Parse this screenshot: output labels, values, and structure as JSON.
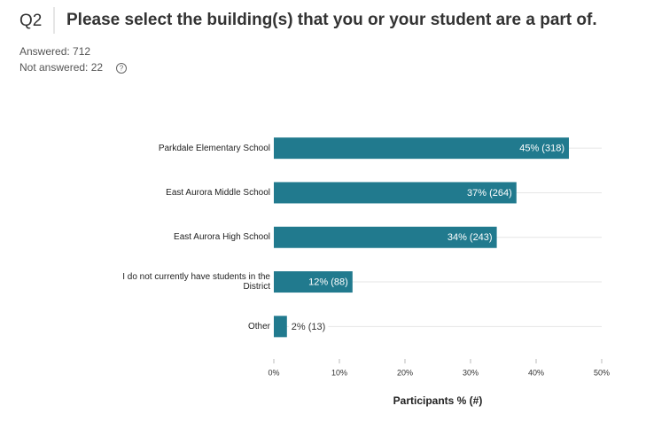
{
  "chart_data": {
    "type": "bar",
    "orientation": "horizontal",
    "question": "Q2",
    "title": "Please select the building(s) that you or your student are a part of.",
    "annotations": [
      "Answered: 712",
      "Not answered: 22"
    ],
    "categories": [
      "Parkdale Elementary School",
      "East Aurora Middle School",
      "East Aurora High School",
      "I do not currently have students in the District",
      "Other"
    ],
    "values": [
      45,
      37,
      34,
      12,
      2
    ],
    "value_labels": [
      "45% (318)",
      "37% (264)",
      "34% (243)",
      "12% (88)",
      "2% (13)"
    ],
    "color": "#217a8e",
    "xlim": [
      0,
      50
    ],
    "xticks": [
      {
        "value": 0,
        "label": "0%"
      },
      {
        "value": 10,
        "label": "10%"
      },
      {
        "value": 20,
        "label": "20%"
      },
      {
        "value": 30,
        "label": "30%"
      },
      {
        "value": 40,
        "label": "40%"
      },
      {
        "value": 50,
        "label": "50%"
      }
    ],
    "xlabel": "Participants % (#)",
    "grid": true
  }
}
